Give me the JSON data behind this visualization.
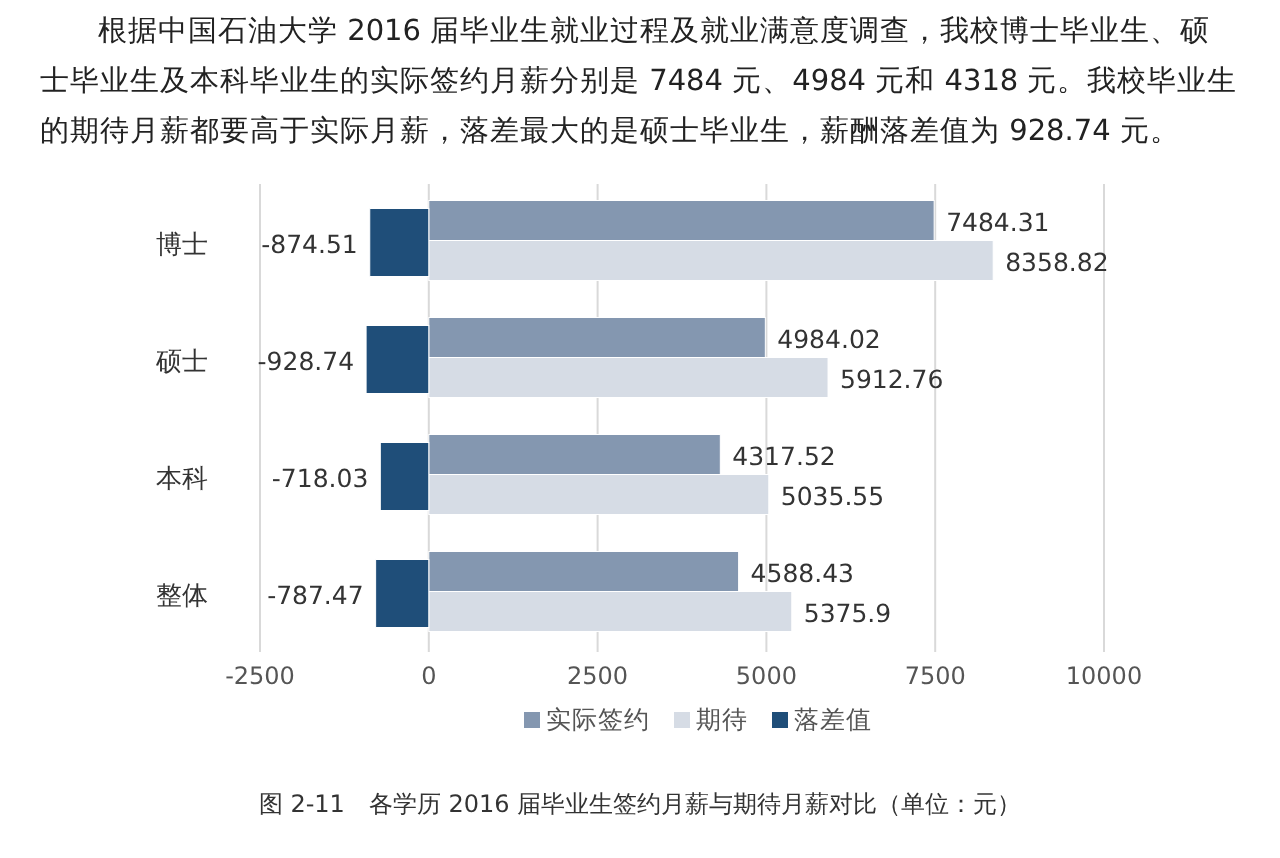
{
  "chart_data": {
    "type": "bar",
    "orientation": "horizontal",
    "title": "图 2-11　各学历 2016 届毕业生签约月薪与期待月薪对比（单位：元）",
    "annotations": [
      "根据中国石油大学 2016 届毕业生就业过程及就业满意度调查，我校博士毕业生、硕士毕业生及本科毕业生的实际签约月薪分别是 7484 元、4984 元和 4318 元。我校毕业生的期待月薪都要高于实际月薪，落差最大的是硕士毕业生，薪酬落差值为 928.74 元。"
    ],
    "categories": [
      "博士",
      "硕士",
      "本科",
      "整体"
    ],
    "series": [
      {
        "name": "实际签约",
        "color": "#8497b0",
        "values": [
          7484.31,
          4984.02,
          4317.52,
          4588.43
        ]
      },
      {
        "name": "期待",
        "color": "#d6dce5",
        "values": [
          8358.82,
          5912.76,
          5035.55,
          5375.9
        ]
      },
      {
        "name": "落差值",
        "color": "#1f4e79",
        "values": [
          -874.51,
          -928.74,
          -718.03,
          -787.47
        ]
      }
    ],
    "xlim": [
      -2500,
      10000
    ],
    "xticks": [
      -2500,
      0,
      2500,
      5000,
      7500,
      10000
    ],
    "grid": "x",
    "legend": "bottom",
    "data_labels": true
  }
}
